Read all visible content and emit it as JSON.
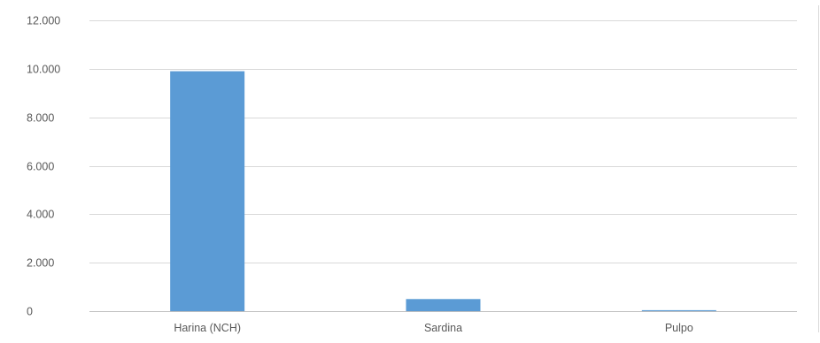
{
  "chart_data": {
    "type": "bar",
    "title": "",
    "xlabel": "",
    "ylabel": "",
    "categories": [
      "Harina (NCH)",
      "Sardina",
      "Pulpo"
    ],
    "values": [
      9900,
      500,
      40
    ],
    "ylim": [
      0,
      12000
    ],
    "yticks": [
      0,
      2000,
      4000,
      6000,
      8000,
      10000,
      12000
    ],
    "ytick_labels": [
      "0",
      "2.000",
      "4.000",
      "6.000",
      "8.000",
      "10.000",
      "12.000"
    ],
    "grid": true,
    "legend": "none",
    "colors": {
      "bar": "#5b9bd5",
      "grid": "#d9d9d9",
      "axis": "#bfbfbf",
      "text": "#595959"
    }
  }
}
